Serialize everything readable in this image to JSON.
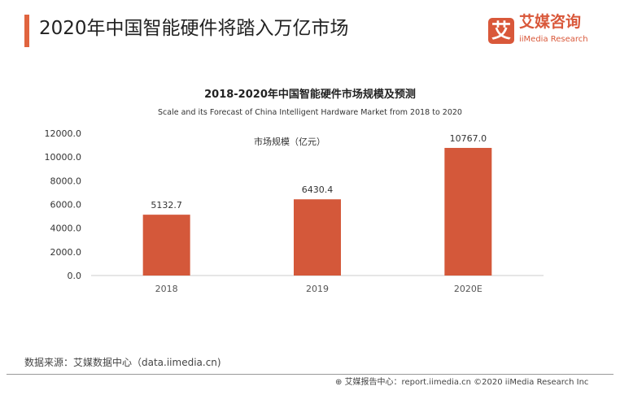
{
  "header": {
    "title": "2020年中国智能硬件将踏入万亿市场",
    "logo_glyph": "艾",
    "logo_cn": "艾媒咨询",
    "logo_en": "iiMedia Research",
    "accent": "#e0643f"
  },
  "chart_data": {
    "type": "bar",
    "title": "2018-2020年中国智能硬件市场规模及预测",
    "subtitle": "Scale and its Forecast of China Intelligent Hardware Market from 2018 to 2020",
    "categories": [
      "2018",
      "2019",
      "2020E"
    ],
    "series": [
      {
        "name": "市场规模（亿元）",
        "values": [
          5132.7,
          6430.4,
          10767.0
        ],
        "labels": [
          "5132.7",
          "6430.4",
          "10767.0"
        ],
        "color": "#d4583a"
      }
    ],
    "yticks": [
      "0.0",
      "2000.0",
      "4000.0",
      "6000.0",
      "8000.0",
      "10000.0",
      "12000.0"
    ],
    "ylim": [
      0,
      12000
    ],
    "legend": "top-left"
  },
  "footer": {
    "source": "数据来源：艾媒数据中心（data.iimedia.cn)",
    "credit": "艾媒报告中心：report.iimedia.cn  ©2020  iiMedia Research  Inc"
  }
}
